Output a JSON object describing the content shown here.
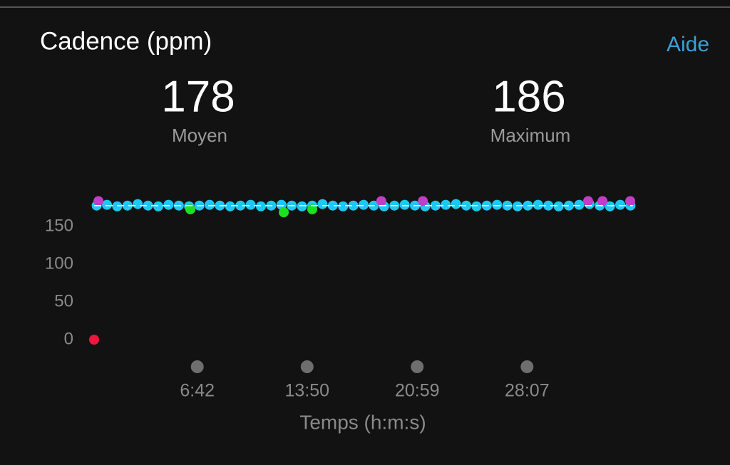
{
  "header": {
    "title": "Cadence (ppm)",
    "help": "Aide"
  },
  "stats": [
    {
      "value": 178,
      "label": "Moyen"
    },
    {
      "value": 186,
      "label": "Maximum"
    }
  ],
  "chart_data": {
    "type": "scatter",
    "x_label": "Temps (h:m:s)",
    "xlim": [
      0,
      2100
    ],
    "ylim": [
      0,
      190
    ],
    "xticks": [
      {
        "value": 402,
        "label": "6:42"
      },
      {
        "value": 830,
        "label": "13:50"
      },
      {
        "value": 1259,
        "label": "20:59"
      },
      {
        "value": 1687,
        "label": "28:07"
      }
    ],
    "yticks": [
      0,
      50,
      100,
      150
    ],
    "series": [
      {
        "color": "#1ec8f0",
        "x": [
          10,
          50,
          90,
          130,
          170,
          210,
          250,
          290,
          330,
          370,
          410,
          450,
          490,
          530,
          570,
          610,
          650,
          690,
          730,
          770,
          810,
          850,
          890,
          930,
          970,
          1010,
          1050,
          1090,
          1130,
          1170,
          1210,
          1250,
          1290,
          1330,
          1370,
          1410,
          1450,
          1490,
          1530,
          1570,
          1610,
          1650,
          1690,
          1730,
          1770,
          1810,
          1850,
          1890,
          1930,
          1970,
          2010,
          2050,
          2090
        ],
        "values": [
          178,
          179,
          177,
          178,
          180,
          178,
          177,
          179,
          178,
          177,
          178,
          179,
          178,
          177,
          178,
          179,
          177,
          178,
          179,
          178,
          177,
          178,
          180,
          178,
          177,
          178,
          179,
          178,
          177,
          178,
          179,
          178,
          177,
          178,
          179,
          180,
          178,
          177,
          178,
          179,
          178,
          177,
          178,
          179,
          178,
          177,
          178,
          179,
          180,
          178,
          177,
          179,
          178
        ]
      },
      {
        "color": "#c23ec6",
        "x": [
          17,
          1119,
          1281,
          1925,
          1981,
          2089
        ],
        "values": [
          184,
          184,
          184,
          184,
          184,
          184
        ]
      },
      {
        "color": "#1fe01f",
        "x": [
          375,
          739,
          850
        ],
        "values": [
          173,
          169,
          173
        ]
      },
      {
        "color": "#f0153c",
        "x": [
          0
        ],
        "values": [
          0
        ]
      }
    ]
  }
}
